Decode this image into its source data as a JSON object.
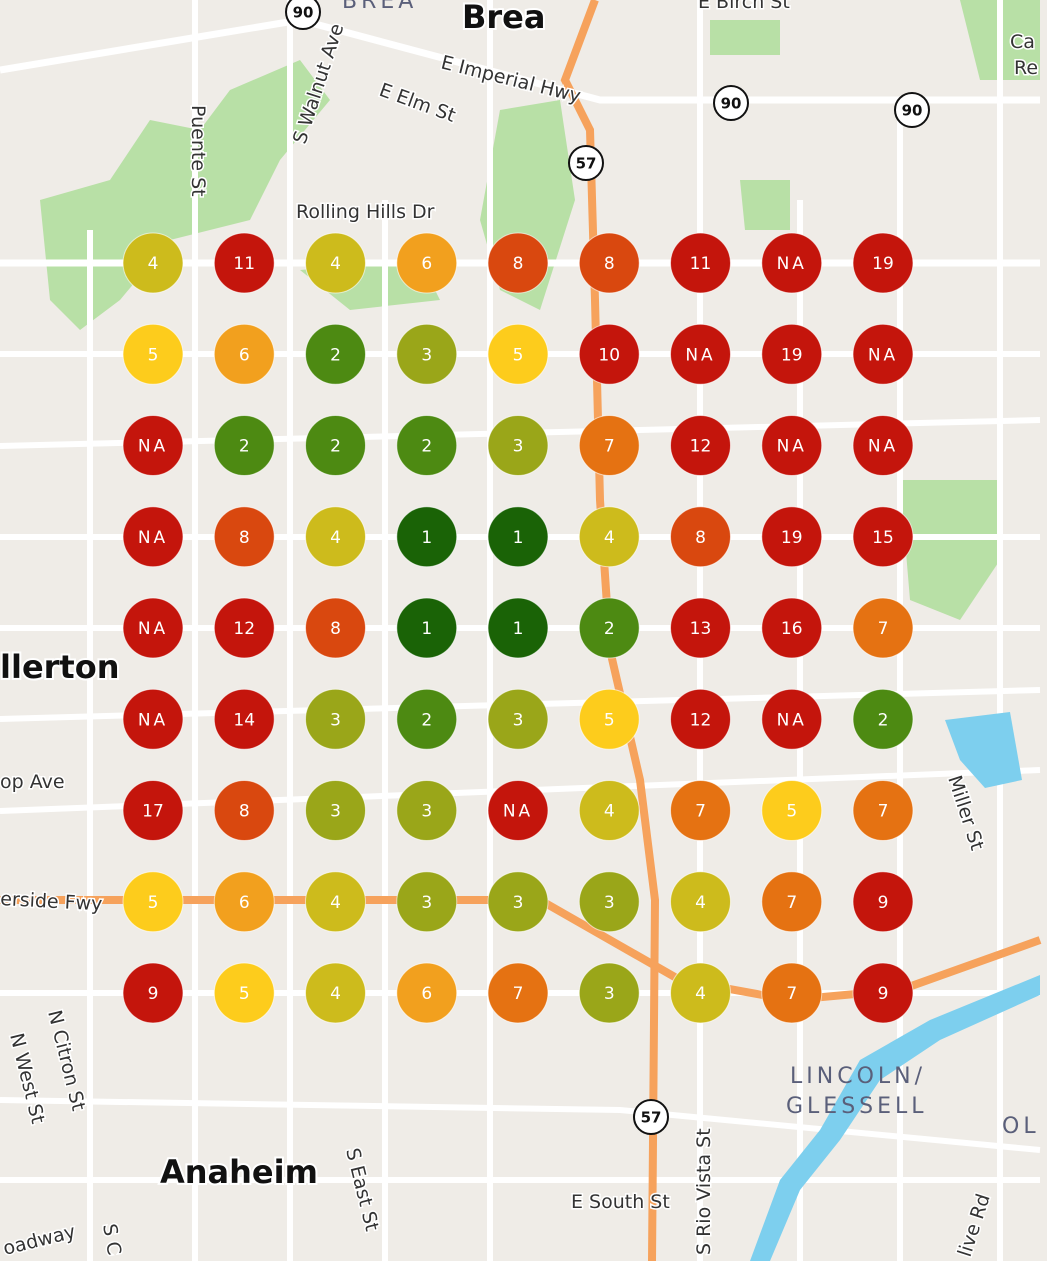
{
  "map": {
    "labels": [
      "BREA",
      "Brea",
      "E Birch St",
      "Puente St",
      "S Walnut Ave",
      "E Imperial Hwy",
      "E Elm St",
      "Rolling Hills Dr",
      "llerton",
      "op Ave",
      "erside Fwy",
      "Miller St",
      "N Citron St",
      "N West St",
      "LINCOLN/",
      "GLESSELL",
      "Anaheim",
      "S East St",
      "E South St",
      "S Rio Vista St",
      "oadway",
      "S C",
      "live Rd",
      "OL",
      "Ca",
      "Re"
    ],
    "highway_shields": [
      "90",
      "90",
      "90",
      "57",
      "57"
    ]
  },
  "grid": {
    "rows": [
      [
        4,
        11,
        4,
        6,
        8,
        8,
        11,
        "NA",
        19
      ],
      [
        5,
        6,
        2,
        3,
        5,
        10,
        "NA",
        19,
        "NA"
      ],
      [
        "NA",
        2,
        2,
        2,
        3,
        7,
        12,
        "NA",
        "NA"
      ],
      [
        "NA",
        8,
        4,
        1,
        1,
        4,
        8,
        19,
        15
      ],
      [
        "NA",
        12,
        8,
        1,
        1,
        2,
        13,
        16,
        7
      ],
      [
        "NA",
        14,
        3,
        2,
        3,
        5,
        12,
        "NA",
        2
      ],
      [
        17,
        8,
        3,
        3,
        "NA",
        4,
        7,
        5,
        7
      ],
      [
        5,
        6,
        4,
        3,
        3,
        3,
        4,
        7,
        9
      ],
      [
        9,
        5,
        4,
        6,
        7,
        3,
        4,
        7,
        9
      ]
    ]
  }
}
